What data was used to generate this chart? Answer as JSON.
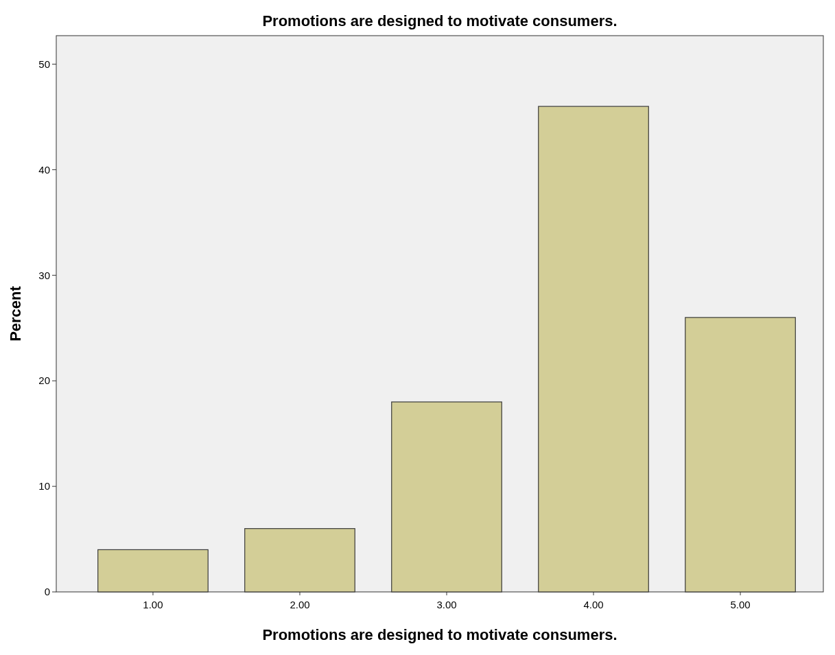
{
  "chart_data": {
    "type": "bar",
    "title": "Promotions are designed to motivate consumers.",
    "xlabel": "Promotions are designed to motivate consumers.",
    "ylabel": "Percent",
    "categories": [
      "1.00",
      "2.00",
      "3.00",
      "4.00",
      "5.00"
    ],
    "values": [
      4,
      6,
      18,
      46,
      26
    ],
    "color": "#d3ce97",
    "ylim": [
      0,
      52.7
    ],
    "yticks": [
      0,
      10,
      20,
      30,
      40,
      50
    ],
    "grid": false
  }
}
